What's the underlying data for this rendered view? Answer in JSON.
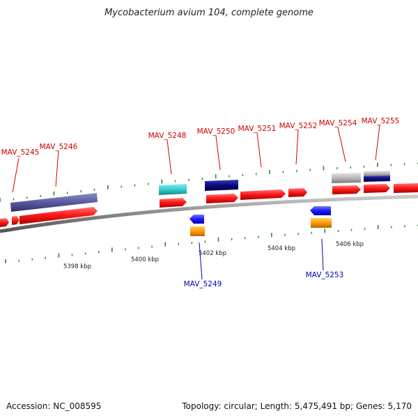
{
  "title": "Mycobacterium avium 104, complete genome",
  "footer": {
    "accession": "Accession: NC_008595",
    "topology": "Topology: circular; Length: 5,475,491 bp; Genes: 5,170"
  },
  "colors": {
    "forward_label": "#cc0000",
    "reverse_label": "#0000bb",
    "cds_red": "#ff1a1a",
    "slate": "#5a5aa0",
    "cyan": "#33cccc",
    "navy": "#0a0a80",
    "gray": "#b8b8b8",
    "blue": "#1a1aff",
    "orange": "#ff9900",
    "backbone": "#888888",
    "tick_green": "#228b22"
  },
  "kbp_labels": [
    "5398 kbp",
    "5400 kbp",
    "5402 kbp",
    "5404 kbp",
    "5406 kbp"
  ],
  "forward_labels": [
    "MAV_5245",
    "MAV_5246",
    "MAV_5248",
    "MAV_5250",
    "MAV_5251",
    "MAV_5252",
    "MAV_5254",
    "MAV_5255"
  ],
  "reverse_labels": [
    "MAV_5249",
    "MAV_5253"
  ]
}
